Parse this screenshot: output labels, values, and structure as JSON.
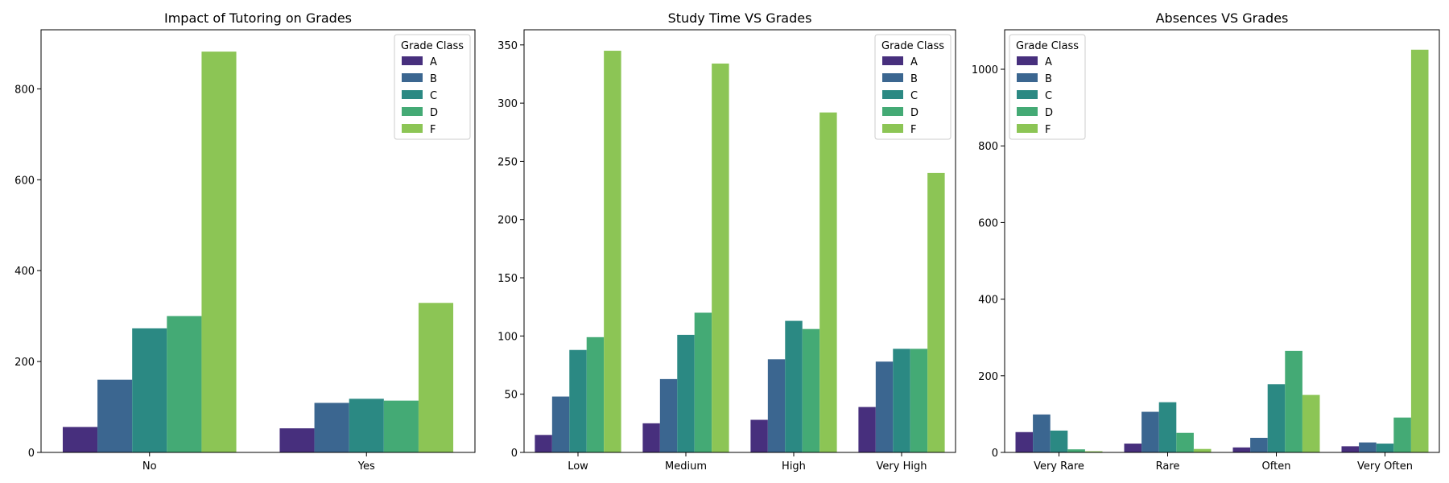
{
  "legend_title": "Grade Class",
  "series_colors": {
    "A": "#472f7d",
    "B": "#3b6690",
    "C": "#2b8983",
    "D": "#44aa75",
    "F": "#8cc555"
  },
  "chart_data": [
    {
      "type": "bar",
      "title": "Impact of Tutoring on Grades",
      "xlabel": "",
      "ylabel": "",
      "categories": [
        "No",
        "Yes"
      ],
      "ylim": [
        0,
        930
      ],
      "yticks": [
        0,
        200,
        400,
        600,
        800
      ],
      "legend_position": "top-right",
      "series": [
        {
          "name": "A",
          "values": [
            56,
            53
          ]
        },
        {
          "name": "B",
          "values": [
            160,
            109
          ]
        },
        {
          "name": "C",
          "values": [
            273,
            118
          ]
        },
        {
          "name": "D",
          "values": [
            300,
            114
          ]
        },
        {
          "name": "F",
          "values": [
            882,
            329
          ]
        }
      ]
    },
    {
      "type": "bar",
      "title": "Study Time VS Grades",
      "xlabel": "",
      "ylabel": "",
      "categories": [
        "Low",
        "Medium",
        "High",
        "Very High"
      ],
      "ylim": [
        0,
        363
      ],
      "yticks": [
        0,
        50,
        100,
        150,
        200,
        250,
        300,
        350
      ],
      "legend_position": "top-right",
      "series": [
        {
          "name": "A",
          "values": [
            15,
            25,
            28,
            39
          ]
        },
        {
          "name": "B",
          "values": [
            48,
            63,
            80,
            78
          ]
        },
        {
          "name": "C",
          "values": [
            88,
            101,
            113,
            89
          ]
        },
        {
          "name": "D",
          "values": [
            99,
            120,
            106,
            89
          ]
        },
        {
          "name": "F",
          "values": [
            345,
            334,
            292,
            240
          ]
        }
      ]
    },
    {
      "type": "bar",
      "title": "Absences VS Grades",
      "xlabel": "",
      "ylabel": "",
      "categories": [
        "Very Rare",
        "Rare",
        "Often",
        "Very Often"
      ],
      "ylim": [
        0,
        1103
      ],
      "yticks": [
        0,
        200,
        400,
        600,
        800,
        1000
      ],
      "legend_position": "top-left",
      "series": [
        {
          "name": "A",
          "values": [
            53,
            23,
            13,
            16
          ]
        },
        {
          "name": "B",
          "values": [
            99,
            106,
            38,
            26
          ]
        },
        {
          "name": "C",
          "values": [
            57,
            131,
            178,
            23
          ]
        },
        {
          "name": "D",
          "values": [
            8,
            51,
            265,
            91
          ]
        },
        {
          "name": "F",
          "values": [
            3,
            9,
            150,
            1051
          ]
        }
      ]
    }
  ]
}
